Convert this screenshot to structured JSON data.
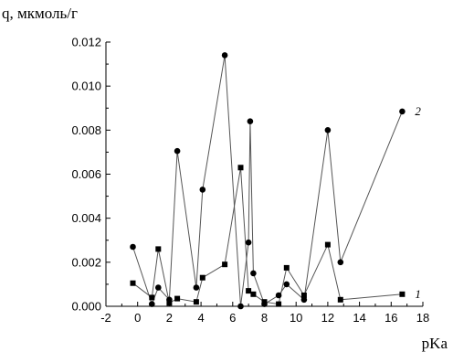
{
  "chart_data": {
    "type": "line",
    "ylabel": "q, мкмоль/г",
    "xlabel": "pKa",
    "xlim": [
      -2,
      18
    ],
    "ylim": [
      0,
      0.012
    ],
    "x_ticks": [
      -2,
      0,
      2,
      4,
      6,
      8,
      10,
      12,
      14,
      16,
      18
    ],
    "y_ticks": [
      "0.000",
      "0.002",
      "0.004",
      "0.006",
      "0.008",
      "0.010",
      "0.012"
    ],
    "grid": false,
    "series": [
      {
        "name": "1",
        "marker": "square",
        "points": [
          [
            -0.3,
            0.00105
          ],
          [
            0.9,
            0.0004
          ],
          [
            1.3,
            0.0026
          ],
          [
            2.0,
            0.00015
          ],
          [
            2.5,
            0.00035
          ],
          [
            3.7,
            0.0002
          ],
          [
            4.1,
            0.0013
          ],
          [
            5.5,
            0.0019
          ],
          [
            6.5,
            0.0063
          ],
          [
            7.0,
            0.0007
          ],
          [
            7.3,
            0.00055
          ],
          [
            8.0,
            0.0002
          ],
          [
            8.9,
            0.0001
          ],
          [
            9.4,
            0.00175
          ],
          [
            10.5,
            0.0005
          ],
          [
            12.0,
            0.0028
          ],
          [
            12.8,
            0.0003
          ],
          [
            16.7,
            0.00055
          ]
        ]
      },
      {
        "name": "2",
        "marker": "circle",
        "points": [
          [
            -0.3,
            0.0027
          ],
          [
            0.9,
            0.0001
          ],
          [
            1.3,
            0.00085
          ],
          [
            2.0,
            0.0003
          ],
          [
            2.5,
            0.00705
          ],
          [
            3.7,
            0.00085
          ],
          [
            4.1,
            0.0053
          ],
          [
            5.5,
            0.0114
          ],
          [
            6.5,
            0.0
          ],
          [
            7.0,
            0.0029
          ],
          [
            7.1,
            0.0084
          ],
          [
            7.3,
            0.0015
          ],
          [
            8.0,
            0.0001
          ],
          [
            8.9,
            0.0005
          ],
          [
            9.4,
            0.001
          ],
          [
            10.5,
            0.0003
          ],
          [
            12.0,
            0.008
          ],
          [
            12.8,
            0.002
          ],
          [
            16.7,
            0.00885
          ]
        ]
      }
    ]
  }
}
